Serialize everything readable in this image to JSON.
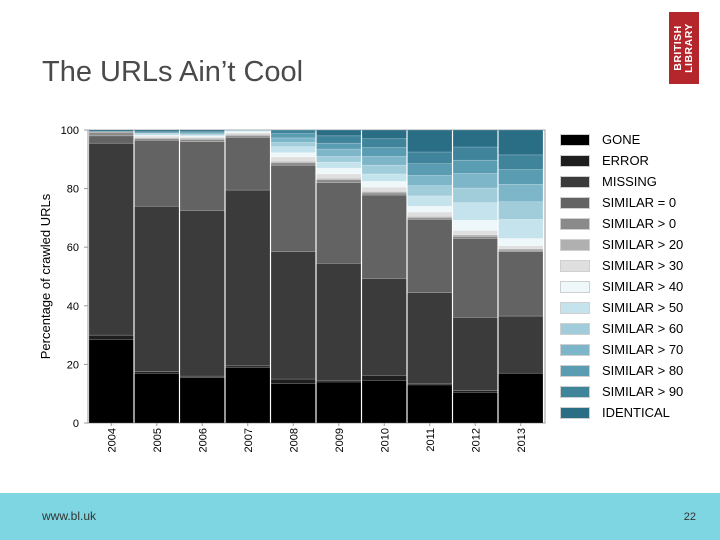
{
  "slide": {
    "title": "The URLs Ain’t Cool",
    "logo_lines": [
      "BRITISH",
      "LIBRARY"
    ],
    "footer_url": "www.bl.uk",
    "page_number": "22",
    "footer_color": "#7ed6e2",
    "logo_color": "#b4262c"
  },
  "chart_data": {
    "type": "bar",
    "stacked": true,
    "title": "",
    "xlabel": "",
    "ylabel": "Percentage of crawled URLs",
    "ylim": [
      0,
      100
    ],
    "yticks": [
      0,
      20,
      40,
      60,
      80,
      100
    ],
    "grid": false,
    "legend_position": "right",
    "categories": [
      "2004",
      "2005",
      "2006",
      "2007",
      "2008",
      "2009",
      "2010",
      "2011",
      "2012",
      "2013"
    ],
    "series": [
      {
        "name": "GONE",
        "color": "#000000",
        "values": [
          28.5,
          17,
          15.5,
          19,
          13.5,
          14,
          14.5,
          13,
          10.5,
          17
        ]
      },
      {
        "name": "ERROR",
        "color": "#1e1e1e",
        "values": [
          1.5,
          0.5,
          0.5,
          0.5,
          1.5,
          0.5,
          1.8,
          0.5,
          0.5,
          0
        ]
      },
      {
        "name": "MISSING",
        "color": "#3b3b3b",
        "values": [
          65.5,
          56.5,
          56.5,
          60,
          43.5,
          40,
          33,
          31,
          25,
          19.5
        ]
      },
      {
        "name": "SIMILAR = 0",
        "color": "#636363",
        "values": [
          2.5,
          22.5,
          23.5,
          18,
          29.5,
          27.5,
          28.5,
          25,
          27,
          22
        ]
      },
      {
        "name": "SIMILAR > 0",
        "color": "#8a8a8a",
        "values": [
          1.2,
          0.5,
          0.8,
          0.5,
          0.8,
          1,
          0.7,
          0.5,
          0.7,
          0.5
        ]
      },
      {
        "name": "SIMILAR > 20",
        "color": "#b0b0b0",
        "values": [
          0.3,
          0.4,
          0.4,
          0.5,
          0.5,
          0.5,
          0.5,
          0.5,
          0.5,
          0.5
        ]
      },
      {
        "name": "SIMILAR > 30",
        "color": "#dfdfdf",
        "values": [
          0,
          0.5,
          0.4,
          0.5,
          1.5,
          1.5,
          1.5,
          1.5,
          1.5,
          1
        ]
      },
      {
        "name": "SIMILAR > 40",
        "color": "#eef7fa",
        "values": [
          0,
          0.3,
          0.3,
          0.4,
          1.5,
          2,
          2,
          2,
          3.5,
          2.5
        ]
      },
      {
        "name": "SIMILAR > 50",
        "color": "#c5e3ec",
        "values": [
          0,
          0.2,
          0.3,
          0.2,
          2,
          2,
          2.5,
          3.5,
          6,
          6.5
        ]
      },
      {
        "name": "SIMILAR > 60",
        "color": "#a1cddb",
        "values": [
          0,
          0.3,
          0.3,
          0.1,
          1.5,
          2,
          3,
          3.5,
          5,
          6
        ]
      },
      {
        "name": "SIMILAR > 70",
        "color": "#7db6c9",
        "values": [
          0,
          0.2,
          0.3,
          0.2,
          1.5,
          2.5,
          3,
          3.5,
          5,
          6
        ]
      },
      {
        "name": "SIMILAR > 80",
        "color": "#5a9db3",
        "values": [
          0,
          0.2,
          0.3,
          0.2,
          1.5,
          2,
          3,
          4,
          4.5,
          5
        ]
      },
      {
        "name": "SIMILAR > 90",
        "color": "#3f849b",
        "values": [
          0,
          0.3,
          0.3,
          0.2,
          1.7,
          2.5,
          3,
          4,
          4.5,
          5
        ]
      },
      {
        "name": "IDENTICAL",
        "color": "#2a6e86",
        "values": [
          0.5,
          0.6,
          0.7,
          0.4,
          2.5,
          4,
          4.5,
          7.5,
          5.8,
          9.5
        ]
      }
    ]
  }
}
